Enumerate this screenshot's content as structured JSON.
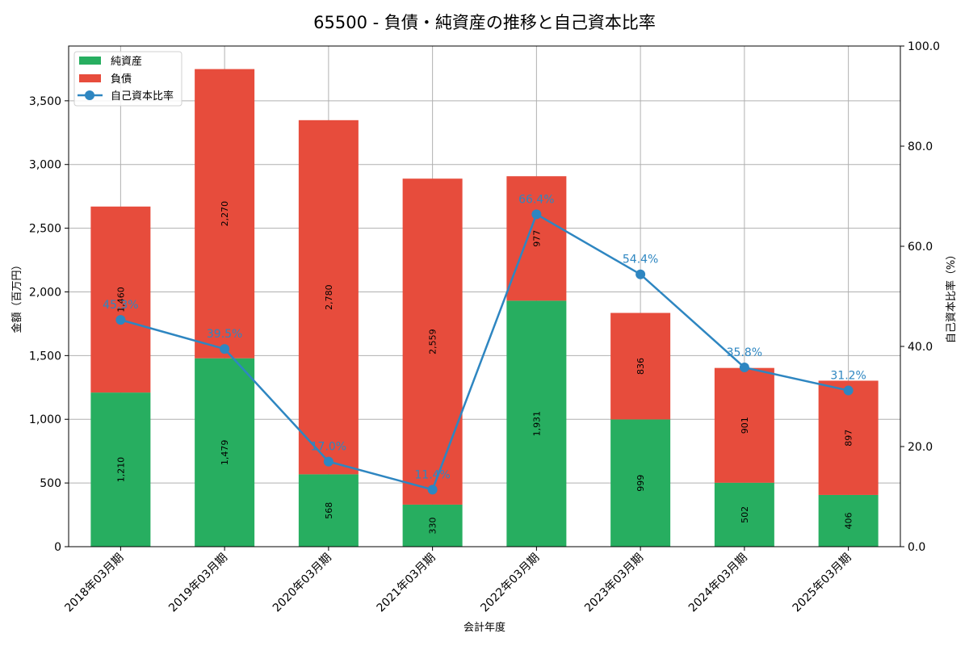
{
  "chart_data": {
    "type": "bar",
    "title": "65500 - 負債・純資産の推移と自己資本比率",
    "xlabel": "会計年度",
    "ylabel": "金額（百万円）",
    "y2label": "自己資本比率（%）",
    "categories": [
      "2018年03月期",
      "2019年03月期",
      "2020年03月期",
      "2021年03月期",
      "2022年03月期",
      "2023年03月期",
      "2024年03月期",
      "2025年03月期"
    ],
    "series": [
      {
        "name": "純資産",
        "type": "stacked-bar",
        "color": "#27ae60",
        "values": [
          1210,
          1479,
          568,
          330,
          1931,
          999,
          502,
          406
        ],
        "labels": [
          "1,210",
          "1,479",
          "568",
          "330",
          "1,931",
          "999",
          "502",
          "406"
        ]
      },
      {
        "name": "負債",
        "type": "stacked-bar",
        "color": "#e74c3c",
        "values": [
          1460,
          2270,
          2780,
          2559,
          977,
          836,
          901,
          897
        ],
        "labels": [
          "1,460",
          "2,270",
          "2,780",
          "2,559",
          "977",
          "836",
          "901",
          "897"
        ]
      },
      {
        "name": "自己資本比率",
        "type": "line",
        "axis": "right",
        "color": "#2e86c1",
        "values": [
          45.3,
          39.5,
          17.0,
          11.4,
          66.4,
          54.4,
          35.8,
          31.2
        ],
        "labels": [
          "45.3%",
          "39.5%",
          "17.0%",
          "11.4%",
          "66.4%",
          "54.4%",
          "35.8%",
          "31.2%"
        ]
      }
    ],
    "ylim": [
      0,
      3930
    ],
    "yticks": [
      "0",
      "500",
      "1,000",
      "1,500",
      "2,000",
      "2,500",
      "3,000",
      "3,500"
    ],
    "y2lim": [
      0,
      100
    ],
    "y2ticks": [
      "0.0",
      "20.0",
      "40.0",
      "60.0",
      "80.0",
      "100.0"
    ],
    "grid": true,
    "legend_position": "upper left"
  }
}
